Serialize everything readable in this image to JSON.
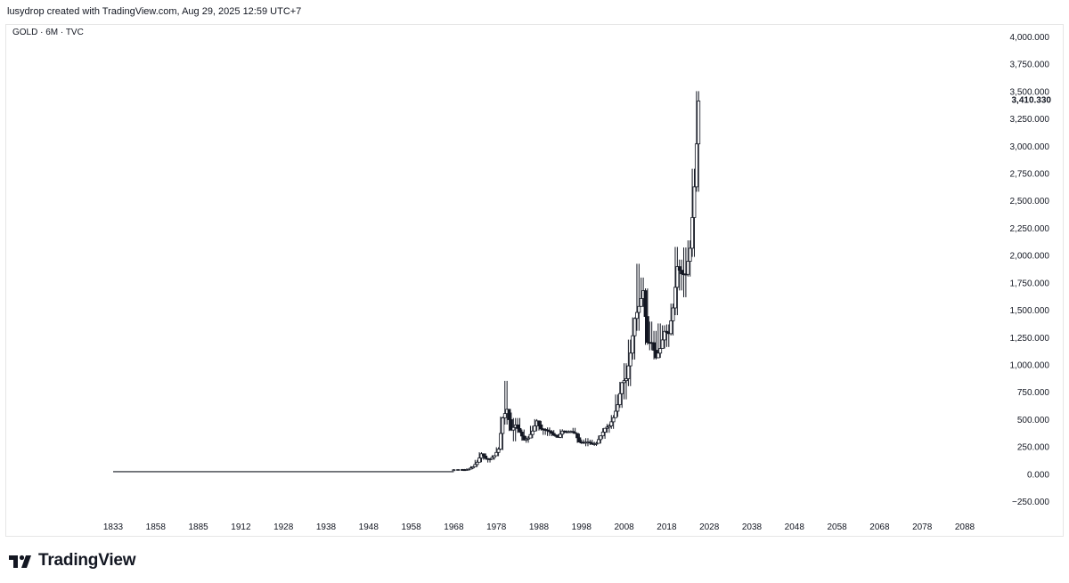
{
  "header": {
    "caption": "lusydrop created with TradingView.com, Aug 29, 2025 12:59 UTC+7"
  },
  "symbol": {
    "caption": "GOLD · 6M · TVC"
  },
  "footer": {
    "brand": "TradingView",
    "logo_icon": "tradingview-logo-icon"
  },
  "colors": {
    "candle": "#131722",
    "axis_text": "#131722",
    "frame": "#e6e6e6"
  },
  "chart_data": {
    "type": "line",
    "style": "candlestick",
    "interval": "6M",
    "last_price_label": "3,410.330",
    "last_price": 3410.33,
    "ylim": [
      -250,
      4000
    ],
    "xlim": [
      1830,
      2096
    ],
    "y_ticks": [
      -250,
      0,
      250,
      500,
      750,
      1000,
      1250,
      1500,
      1750,
      2000,
      2250,
      2500,
      2750,
      3000,
      3250,
      3500,
      3750,
      4000
    ],
    "y_tick_labels": [
      "−250.000",
      "0.000",
      "250.000",
      "500.000",
      "750.000",
      "1,000.000",
      "1,250.000",
      "1,500.000",
      "1,750.000",
      "2,000.000",
      "2,250.000",
      "2,500.000",
      "2,750.000",
      "3,000.000",
      "3,250.000",
      "3,500.000",
      "3,750.000",
      "4,000.000"
    ],
    "x_ticks": [
      1833,
      1858,
      1885,
      1912,
      1928,
      1938,
      1948,
      1958,
      1968,
      1978,
      1988,
      1998,
      2008,
      2018,
      2028,
      2038,
      2048,
      2058,
      2068,
      2078,
      2088
    ],
    "x_tick_labels": [
      "1833",
      "1858",
      "1885",
      "1912",
      "1928",
      "1938",
      "1948",
      "1958",
      "1968",
      "1978",
      "1988",
      "1998",
      "2008",
      "2018",
      "2028",
      "2038",
      "2048",
      "2058",
      "2068",
      "2078",
      "2088"
    ],
    "x_positions": [
      1833,
      1858,
      1885,
      1912,
      1928,
      1938,
      1948,
      1958,
      1968,
      1978,
      1988,
      1998,
      2008,
      2018,
      2028,
      2038,
      2048,
      2058,
      2068,
      2078,
      2088
    ],
    "series": [
      {
        "x": [
          1833,
          1840,
          1850,
          1860,
          1870,
          1880,
          1890,
          1900,
          1910,
          1920,
          1930,
          1934,
          1940,
          1950,
          1960,
          1966,
          1968,
          1970,
          1971,
          1972,
          1973,
          1974,
          1975,
          1976,
          1977,
          1978,
          1979,
          1980,
          1981,
          1982,
          1983,
          1984,
          1985,
          1986,
          1987,
          1988,
          1989,
          1990,
          1991,
          1992,
          1993,
          1994,
          1995,
          1996,
          1997,
          1998,
          1999,
          2000,
          2001,
          2002,
          2003,
          2004,
          2005,
          2006,
          2007,
          2008,
          2009,
          2010,
          2011,
          2012,
          2013,
          2014,
          2015,
          2016,
          2017,
          2018,
          2019,
          2020,
          2021,
          2022,
          2023,
          2024,
          2025
        ],
        "y": [
          19,
          19,
          19,
          19,
          19,
          19,
          19,
          19,
          19,
          19,
          21,
          35,
          35,
          35,
          35,
          35,
          39,
          36,
          43,
          64,
          106,
          183,
          140,
          134,
          165,
          226,
          512,
          590,
          400,
          447,
          382,
          309,
          327,
          391,
          484,
          410,
          401,
          386,
          353,
          333,
          391,
          383,
          387,
          369,
          290,
          288,
          290,
          272,
          279,
          347,
          416,
          438,
          513,
          632,
          834,
          870,
          1104,
          1421,
          1531,
          1675,
          1202,
          1199,
          1061,
          1146,
          1303,
          1282,
          1517,
          1895,
          1829,
          1824,
          2063,
          2625,
          3410
        ],
        "highs": [
          20,
          20,
          20,
          20,
          20,
          20,
          20,
          20,
          20,
          20,
          21,
          35,
          36,
          36,
          36,
          36,
          42,
          44,
          48,
          70,
          127,
          197,
          186,
          140,
          170,
          243,
          524,
          850,
          560,
          510,
          510,
          405,
          345,
          439,
          500,
          484,
          418,
          424,
          400,
          362,
          407,
          397,
          397,
          420,
          367,
          313,
          326,
          312,
          293,
          350,
          417,
          456,
          537,
          725,
          841,
          1011,
          1227,
          1431,
          1921,
          1795,
          1696,
          1392,
          1307,
          1375,
          1358,
          1366,
          1557,
          2075,
          1959,
          2070,
          2135,
          2790,
          3500
        ],
        "lows": [
          18,
          18,
          18,
          18,
          18,
          18,
          18,
          18,
          18,
          18,
          20,
          34,
          34,
          34,
          34,
          34,
          35,
          34,
          37,
          43,
          63,
          106,
          128,
          103,
          128,
          161,
          216,
          450,
          391,
          297,
          374,
          303,
          284,
          326,
          390,
          395,
          356,
          346,
          344,
          330,
          326,
          369,
          372,
          367,
          283,
          273,
          252,
          263,
          255,
          277,
          320,
          375,
          411,
          520,
          603,
          681,
          802,
          1045,
          1308,
          1526,
          1180,
          1130,
          1046,
          1060,
          1146,
          1160,
          1265,
          1451,
          1677,
          1615,
          1804,
          1984,
          2580
        ]
      }
    ]
  }
}
